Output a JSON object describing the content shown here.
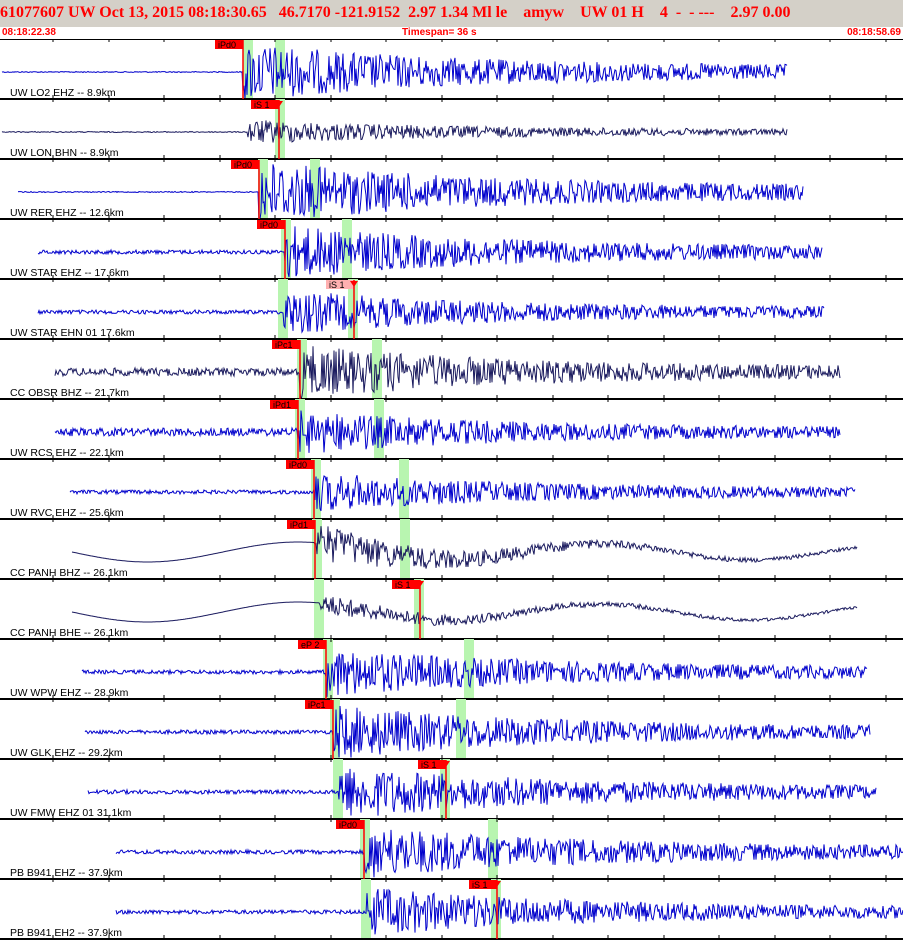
{
  "header": {
    "evid": "61077607",
    "network": "UW",
    "origin_time": "Oct 13, 2015 08:18:30.65",
    "lat": "46.7170",
    "lon": "-121.9152",
    "depth": "2.97",
    "mag": "1.34",
    "mag_type": "Ml",
    "event_type": "le",
    "analyst": "amyw",
    "source": "UW",
    "flag_a": "01",
    "flag_b": "H",
    "count": "4",
    "dashes": "-  - ---",
    "tail_a": "2.97",
    "tail_b": "0.00"
  },
  "time_axis": {
    "start": "08:18:22.38",
    "end": "08:18:58.69",
    "timespan_label": "Timespan=",
    "timespan_value": "36 s"
  },
  "colors": {
    "trace_blue": "#0000cc",
    "trace_navy": "#1a1a5e",
    "pick_red": "#ff0000",
    "pick_pink": "#ffb0b0",
    "window_green": "#b8f5b0",
    "grid_black": "#000000",
    "header_bg": "#d4d0c8"
  },
  "traces": [
    {
      "label": "UW LO2 EHZ -- 8.9km",
      "color": "blue",
      "pick": "iPd0",
      "s_pick": ""
    },
    {
      "label": "UW LON BHN -- 8.9km",
      "color": "navy",
      "pick": "",
      "s_pick": "iS 1"
    },
    {
      "label": "UW RER EHZ -- 12.6km",
      "color": "blue",
      "pick": "iPd0",
      "s_pick": ""
    },
    {
      "label": "UW STAR EHZ -- 17.6km",
      "color": "blue",
      "pick": "iPd0",
      "s_pick": ""
    },
    {
      "label": "UW STAR EHN 01 17.6km",
      "color": "blue",
      "pick": "",
      "s_pick": "iS 1"
    },
    {
      "label": "CC OBSR BHZ -- 21.7km",
      "color": "navy",
      "pick": "iPc1",
      "s_pick": ""
    },
    {
      "label": "UW RCS EHZ -- 22.1km",
      "color": "blue",
      "pick": "iPd1",
      "s_pick": ""
    },
    {
      "label": "UW RVC EHZ -- 25.6km",
      "color": "blue",
      "pick": "iPd0",
      "s_pick": ""
    },
    {
      "label": "CC PANH BHZ -- 26.1km",
      "color": "navy",
      "pick": "iPd1",
      "s_pick": ""
    },
    {
      "label": "CC PANH BHE -- 26.1km",
      "color": "navy",
      "pick": "",
      "s_pick": "iS 1"
    },
    {
      "label": "UW WPW EHZ -- 28.9km",
      "color": "blue",
      "pick": "eP 2",
      "s_pick": ""
    },
    {
      "label": "UW GLK EHZ -- 29.2km",
      "color": "blue",
      "pick": "iPc1",
      "s_pick": ""
    },
    {
      "label": "UW FMW EHZ 01 31.1km",
      "color": "blue",
      "pick": "",
      "s_pick": "iS 1"
    },
    {
      "label": "PB B941 EHZ -- 37.9km",
      "color": "blue",
      "pick": "iPd0",
      "s_pick": ""
    },
    {
      "label": "PB B941 EH2 -- 37.9km",
      "color": "blue",
      "pick": "",
      "s_pick": "iS 1"
    }
  ]
}
